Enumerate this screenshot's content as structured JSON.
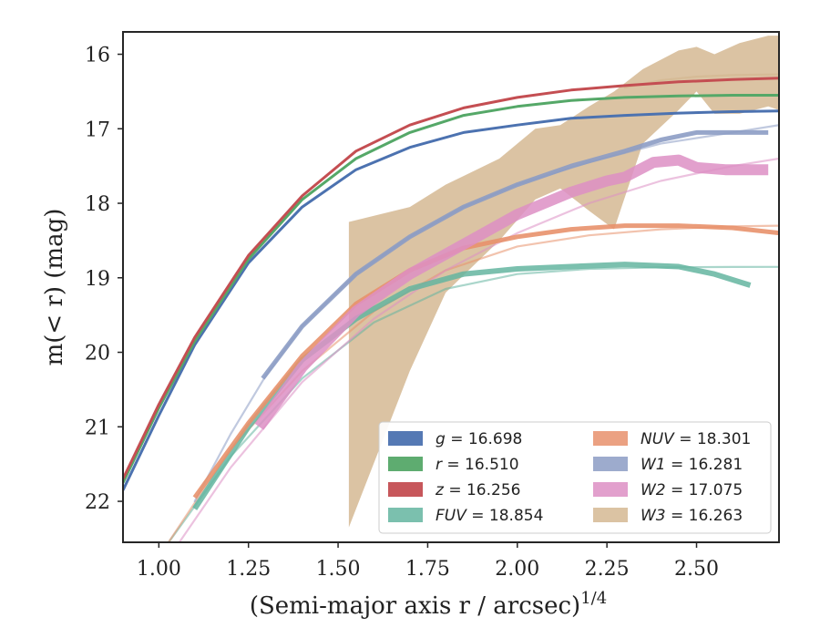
{
  "chart_data": {
    "type": "line",
    "xlabel_main": "(Semi-major axis r / arcsec)",
    "xlabel_sup": "1/4",
    "ylabel": "m(< r) (mag)",
    "xlim": [
      0.9,
      2.73
    ],
    "ylim": [
      22.55,
      15.7
    ],
    "y_inverted": true,
    "xticks": [
      1.0,
      1.25,
      1.5,
      1.75,
      2.0,
      2.25,
      2.5
    ],
    "xtick_labels": [
      "1.00",
      "1.25",
      "1.50",
      "1.75",
      "2.00",
      "2.25",
      "2.50"
    ],
    "yticks": [
      16,
      17,
      18,
      19,
      20,
      21,
      22
    ],
    "ytick_labels": [
      "16",
      "17",
      "18",
      "19",
      "20",
      "21",
      "22"
    ],
    "legend_placement": "lower-right",
    "series": [
      {
        "key": "g",
        "name": "g",
        "value_text": "= 16.698",
        "color": "#4c72b0",
        "x": [
          0.9,
          1.0,
          1.1,
          1.25,
          1.4,
          1.55,
          1.7,
          1.85,
          2.0,
          2.15,
          2.3,
          2.45,
          2.6,
          2.73
        ],
        "y": [
          21.85,
          20.85,
          19.9,
          18.8,
          18.05,
          17.55,
          17.25,
          17.05,
          16.95,
          16.86,
          16.82,
          16.79,
          16.77,
          16.76
        ],
        "width": 3,
        "opacity": 1.0,
        "fit_x": [
          2.65,
          2.73
        ],
        "fit_y": [
          16.77,
          16.76
        ]
      },
      {
        "key": "r",
        "name": "r",
        "value_text": "= 16.510",
        "color": "#55a868",
        "x": [
          0.9,
          1.0,
          1.1,
          1.25,
          1.4,
          1.55,
          1.7,
          1.85,
          2.0,
          2.15,
          2.3,
          2.45,
          2.6,
          2.73
        ],
        "y": [
          21.75,
          20.75,
          19.85,
          18.75,
          17.95,
          17.4,
          17.05,
          16.82,
          16.7,
          16.62,
          16.58,
          16.56,
          16.55,
          16.55
        ],
        "width": 3,
        "opacity": 1.0
      },
      {
        "key": "z",
        "name": "z",
        "value_text": "= 16.256",
        "color": "#c44e52",
        "x": [
          0.9,
          1.0,
          1.1,
          1.25,
          1.4,
          1.55,
          1.7,
          1.85,
          2.0,
          2.15,
          2.3,
          2.45,
          2.6,
          2.73
        ],
        "y": [
          21.7,
          20.7,
          19.8,
          18.7,
          17.9,
          17.3,
          16.95,
          16.72,
          16.58,
          16.48,
          16.42,
          16.37,
          16.34,
          16.32
        ],
        "width": 3,
        "opacity": 1.0
      },
      {
        "key": "FUV",
        "name": "FUV",
        "value_text": "= 18.854",
        "color": "#64b5a0",
        "x": [
          1.1,
          1.25,
          1.4,
          1.55,
          1.7,
          1.85,
          2.0,
          2.15,
          2.3,
          2.45,
          2.55,
          2.65
        ],
        "y": [
          22.1,
          21.0,
          20.1,
          19.55,
          19.15,
          18.95,
          18.88,
          18.85,
          18.82,
          18.85,
          18.95,
          19.1
        ],
        "width": 6,
        "opacity": 0.85,
        "fit_x": [
          1.02,
          1.2,
          1.4,
          1.6,
          1.8,
          2.0,
          2.2,
          2.4,
          2.6,
          2.73
        ],
        "fit_y": [
          22.6,
          21.4,
          20.35,
          19.6,
          19.15,
          18.95,
          18.88,
          18.86,
          18.855,
          18.854
        ]
      },
      {
        "key": "NUV",
        "name": "NUV",
        "value_text": "= 18.301",
        "color": "#e8916c",
        "x": [
          1.1,
          1.25,
          1.4,
          1.55,
          1.7,
          1.85,
          2.0,
          2.15,
          2.3,
          2.45,
          2.6,
          2.73
        ],
        "y": [
          21.95,
          20.95,
          20.05,
          19.35,
          18.9,
          18.6,
          18.45,
          18.35,
          18.3,
          18.3,
          18.33,
          18.4
        ],
        "width": 5,
        "opacity": 0.9,
        "fit_x": [
          1.02,
          1.2,
          1.4,
          1.6,
          1.8,
          2.0,
          2.2,
          2.4,
          2.6,
          2.73
        ],
        "fit_y": [
          22.6,
          21.3,
          20.25,
          19.45,
          18.9,
          18.58,
          18.43,
          18.35,
          18.31,
          18.3
        ]
      },
      {
        "key": "W1",
        "name": "W1",
        "value_text": "= 16.281",
        "color": "#8c9cc4",
        "x": [
          1.29,
          1.4,
          1.55,
          1.7,
          1.85,
          2.0,
          2.15,
          2.3,
          2.4,
          2.5,
          2.6,
          2.7
        ],
        "y": [
          20.35,
          19.65,
          18.95,
          18.45,
          18.05,
          17.75,
          17.5,
          17.3,
          17.15,
          17.05,
          17.05,
          17.05
        ],
        "width": 5,
        "opacity": 0.9,
        "fit_x": [
          1.1,
          1.2,
          1.3,
          1.4,
          1.55,
          1.7,
          1.85,
          2.0,
          2.2,
          2.4,
          2.6,
          2.73
        ],
        "fit_y": [
          22.0,
          21.1,
          20.3,
          19.65,
          18.95,
          18.45,
          18.05,
          17.75,
          17.45,
          17.2,
          17.05,
          16.95
        ]
      },
      {
        "key": "W2",
        "name": "W2",
        "value_text": "= 17.075",
        "color": "#dd8fc4",
        "x": [
          1.28,
          1.4,
          1.55,
          1.7,
          1.85,
          2.0,
          2.15,
          2.25,
          2.3,
          2.38,
          2.45,
          2.5,
          2.58,
          2.7
        ],
        "y": [
          21.0,
          20.2,
          19.45,
          18.95,
          18.55,
          18.15,
          17.85,
          17.7,
          17.65,
          17.45,
          17.42,
          17.52,
          17.55,
          17.55
        ],
        "width": 12,
        "opacity": 0.85,
        "fit_x": [
          1.05,
          1.2,
          1.4,
          1.6,
          1.8,
          2.0,
          2.2,
          2.4,
          2.6,
          2.73
        ],
        "fit_y": [
          22.6,
          21.55,
          20.4,
          19.55,
          18.9,
          18.4,
          18.0,
          17.7,
          17.5,
          17.4
        ]
      },
      {
        "key": "W3",
        "name": "W3",
        "value_text": "= 16.263",
        "color": "#d2b48c",
        "band_x": [
          1.53,
          1.7,
          1.8,
          1.95,
          2.05,
          2.12,
          2.2,
          2.27,
          2.35,
          2.45,
          2.5,
          2.55,
          2.62,
          2.7,
          2.73
        ],
        "band_upper": [
          18.25,
          18.05,
          17.75,
          17.4,
          17.0,
          16.95,
          16.7,
          16.5,
          16.2,
          15.95,
          15.9,
          16.0,
          15.85,
          15.75,
          15.75
        ],
        "band_lower": [
          22.35,
          20.25,
          19.2,
          18.5,
          17.95,
          17.8,
          18.1,
          18.35,
          17.2,
          16.75,
          16.5,
          16.8,
          16.8,
          16.7,
          16.75
        ],
        "width": 0,
        "opacity": 0.8,
        "fit_x": [
          2.3,
          2.4,
          2.5,
          2.6,
          2.73
        ],
        "fit_y": [
          16.45,
          16.35,
          16.3,
          16.28,
          16.27
        ]
      }
    ],
    "legend": {
      "columns": [
        [
          "g",
          "r",
          "z",
          "FUV"
        ],
        [
          "NUV",
          "W1",
          "W2",
          "W3"
        ]
      ]
    }
  }
}
